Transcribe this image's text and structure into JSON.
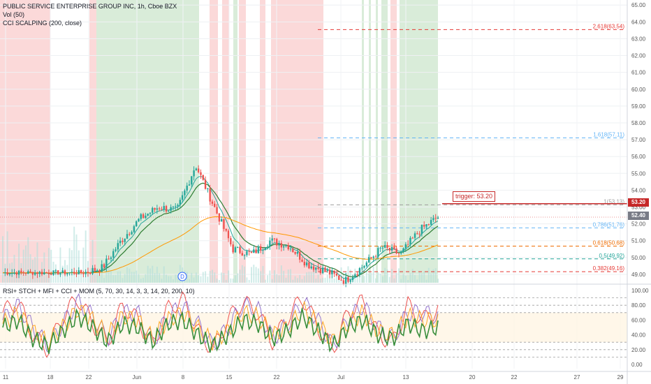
{
  "legend": {
    "symbol": "PUBLIC SERVICE ENTERPRISE GROUP INC, 1h, Cboe BZX",
    "volume": "Vol (50)",
    "cci": "CCI SCALPING (200, close)"
  },
  "indicator_legend": "RSI+ STCH + MFI + CCI + MOM (5, 70, 30, 14, 3, 3, 14, 20, 200, 10)",
  "price_tags": {
    "last": "52.40",
    "trigger": "53.20"
  },
  "trigger_label": "trigger: 53.20",
  "dividend_marker": "D",
  "colors": {
    "up": "#26a69a",
    "down": "#ef5350",
    "bull_bg": "#d9ecd9",
    "bear_bg": "#fbd9d9",
    "ema_fast": "#26a69a",
    "ema_slow": "#2e7d32",
    "sma_long": "#ff9800",
    "trigger": "#c62828"
  },
  "chart_data": [
    {
      "type": "candlestick",
      "title": "PUBLIC SERVICE ENTERPRISE GROUP INC, 1h, Cboe BZX",
      "y_axis": {
        "min": 48.5,
        "max": 65.3,
        "ticks": [
          49.0,
          50.0,
          51.0,
          52.0,
          53.0,
          54.0,
          55.0,
          56.0,
          57.0,
          58.0,
          59.0,
          60.0,
          61.0,
          62.0,
          63.0,
          64.0,
          65.0
        ]
      },
      "x_tick_labels": [
        "11",
        "18",
        "22",
        "Jun",
        "8",
        "15",
        "22",
        "Jul",
        "13",
        "20",
        "22",
        "27",
        "29"
      ],
      "price_path": [
        {
          "x": "May 20",
          "y": 49.1
        },
        {
          "x": "May 22",
          "y": 49.4
        },
        {
          "x": "May 26",
          "y": 51.0
        },
        {
          "x": "May 29",
          "y": 52.3
        },
        {
          "x": "Jun 3",
          "y": 53.0
        },
        {
          "x": "Jun 5",
          "y": 52.8
        },
        {
          "x": "Jun 8",
          "y": 55.5
        },
        {
          "x": "Jun 10",
          "y": 53.0
        },
        {
          "x": "Jun 12",
          "y": 50.5
        },
        {
          "x": "Jun 15",
          "y": 50.2
        },
        {
          "x": "Jun 17",
          "y": 51.0
        },
        {
          "x": "Jun 19",
          "y": 50.7
        },
        {
          "x": "Jun 22",
          "y": 49.6
        },
        {
          "x": "Jun 25",
          "y": 49.2
        },
        {
          "x": "Jun 29",
          "y": 48.6
        },
        {
          "x": "Jul 1",
          "y": 49.5
        },
        {
          "x": "Jul 6",
          "y": 50.6
        },
        {
          "x": "Jul 9",
          "y": 50.2
        },
        {
          "x": "Jul 13",
          "y": 51.6
        },
        {
          "x": "Jul 15",
          "y": 52.4
        }
      ],
      "series": [
        {
          "name": "Vol (50)"
        },
        {
          "name": "CCI SCALPING (200, close)"
        }
      ],
      "fibonacci_levels": [
        {
          "label": "2.618(63.54)",
          "value": 63.54,
          "color": "#e53935",
          "dash": true
        },
        {
          "label": "1.618(57.11)",
          "value": 57.11,
          "color": "#64b5f6",
          "dash": true
        },
        {
          "label": "1(53.13)",
          "value": 53.13,
          "color": "#9e9e9e",
          "dash": true
        },
        {
          "label": "0.786(51.76)",
          "value": 51.76,
          "color": "#64b5f6",
          "dash": true
        },
        {
          "label": "0.618(50.68)",
          "value": 50.68,
          "color": "#ef6c00",
          "dash": true
        },
        {
          "label": "0.5(49.92)",
          "value": 49.92,
          "color": "#26a69a",
          "dash": true
        },
        {
          "label": "0.382(49.16)",
          "value": 49.16,
          "color": "#e53935",
          "dash": true
        }
      ],
      "trigger": 53.2,
      "last_price": 52.4
    },
    {
      "type": "line",
      "title": "RSI+ STCH + MFI + CCI + MOM (5, 70, 30, 14, 3, 3, 14, 20, 200, 10)",
      "y_axis": {
        "min": 0,
        "max": 100,
        "ticks": [
          0.0,
          20.0,
          40.0,
          60.0,
          80.0,
          100.0
        ]
      },
      "reference_lines": [
        90,
        80,
        70,
        30,
        20,
        10
      ],
      "series": [
        {
          "values": [
            70,
            85,
            40,
            20,
            65,
            90,
            55,
            30,
            80,
            60,
            25,
            75,
            88,
            45,
            20,
            60,
            85,
            70,
            30,
            65,
            90,
            50,
            20,
            70,
            85,
            40,
            30,
            80,
            60,
            75
          ]
        },
        {
          "values": [
            60,
            80,
            50,
            25,
            55,
            85,
            65,
            35,
            70,
            70,
            30,
            65,
            80,
            55,
            25,
            50,
            80,
            75,
            35,
            55,
            85,
            60,
            25,
            60,
            80,
            50,
            35,
            70,
            70,
            65
          ]
        },
        {
          "values": [
            55,
            70,
            45,
            30,
            50,
            75,
            60,
            40,
            65,
            60,
            35,
            60,
            70,
            50,
            30,
            45,
            70,
            65,
            40,
            50,
            75,
            55,
            30,
            55,
            70,
            45,
            40,
            65,
            60,
            60
          ]
        },
        {
          "values": [
            50,
            60,
            35,
            25,
            45,
            65,
            50,
            30,
            55,
            50,
            30,
            55,
            60,
            40,
            25,
            40,
            60,
            55,
            35,
            45,
            65,
            45,
            25,
            50,
            60,
            40,
            35,
            55,
            45,
            50
          ]
        }
      ]
    }
  ]
}
